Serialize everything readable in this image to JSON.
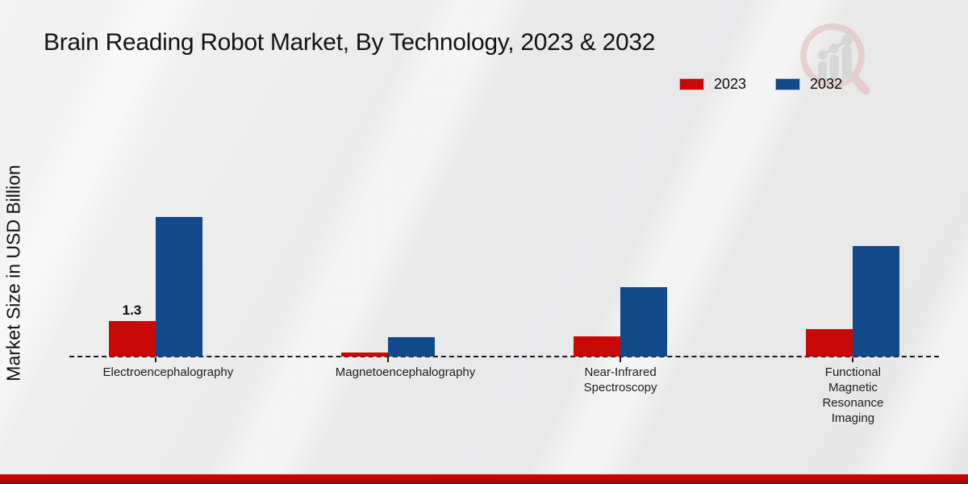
{
  "header": {
    "title": "Brain Reading Robot Market, By Technology, 2023 & 2032"
  },
  "legend": {
    "items": [
      {
        "label": "2023",
        "color": "#c90808"
      },
      {
        "label": "2032",
        "color": "#11498b"
      }
    ]
  },
  "chart_data": {
    "type": "bar",
    "title": "Brain Reading Robot Market, By Technology, 2023 & 2032",
    "xlabel": "",
    "ylabel": "Market Size in USD Billion",
    "unit": "USD Billion",
    "categories": [
      "Electroencephalography",
      "Magnetoencephalography",
      "Near-Infrared Spectroscopy",
      "Functional Magnetic Resonance Imaging"
    ],
    "series": [
      {
        "name": "2023",
        "color": "#c90808",
        "values": [
          1.3,
          0.15,
          0.75,
          1.0
        ],
        "value_labels": [
          "1.3",
          "",
          "",
          ""
        ]
      },
      {
        "name": "2032",
        "color": "#11498b",
        "values": [
          5.1,
          0.7,
          2.55,
          4.05
        ],
        "value_labels": [
          "",
          "",
          "",
          ""
        ]
      }
    ],
    "ylim": [
      0,
      5.5
    ],
    "grid": false,
    "legend_position": "top-right",
    "axis_style": "dashed-baseline"
  },
  "watermark": {
    "icon": "magnifier-growth-chart-logo"
  },
  "footer": {
    "accent_color": "#bb0606"
  }
}
